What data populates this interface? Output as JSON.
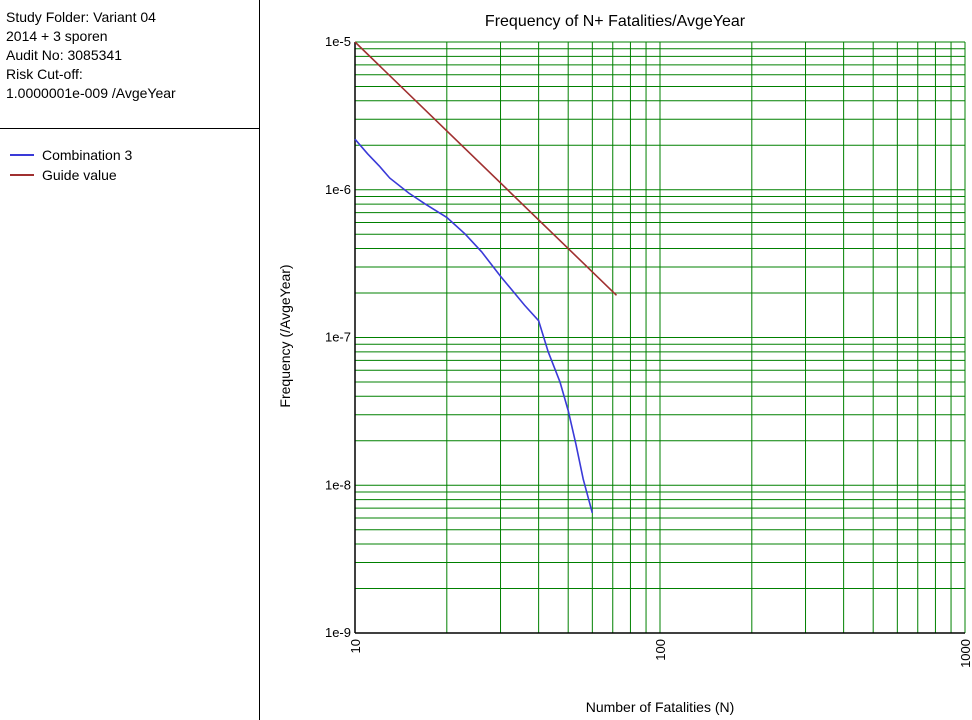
{
  "info": {
    "lines": [
      "Study Folder: Variant 04",
      "2014 + 3 sporen",
      "Audit No: 3085341",
      "Risk Cut-off:",
      "1.0000001e-009 /AvgeYear"
    ]
  },
  "chart_data": {
    "type": "line",
    "title": "Frequency of N+ Fatalities/AvgeYear",
    "xlabel": "Number of Fatalities (N)",
    "ylabel": "Frequency (/AvgeYear)",
    "xscale": "log",
    "yscale": "log",
    "xlim": [
      10,
      1000
    ],
    "ylim": [
      1e-09,
      1e-05
    ],
    "grid": true,
    "grid_color": "#008000",
    "x_tick_labels": [
      "10",
      "100",
      "1000"
    ],
    "y_tick_labels": [
      "1e-9",
      "1e-8",
      "1e-7",
      "1e-6",
      "1e-5"
    ],
    "legend_position": "left-panel",
    "series": [
      {
        "name": "Combination 3",
        "color": "#3a3ad8",
        "x": [
          10,
          11,
          12,
          13,
          15,
          17,
          20,
          23,
          26,
          30,
          33,
          36,
          40,
          43,
          47,
          50,
          53,
          56,
          60
        ],
        "y": [
          2.2e-06,
          1.75e-06,
          1.45e-06,
          1.2e-06,
          9.5e-07,
          8e-07,
          6.5e-07,
          5e-07,
          3.8e-07,
          2.6e-07,
          2.05e-07,
          1.65e-07,
          1.3e-07,
          8e-08,
          5e-08,
          3.2e-08,
          1.9e-08,
          1.1e-08,
          6.5e-09
        ]
      },
      {
        "name": "Guide value",
        "color": "#a03030",
        "x": [
          10,
          72
        ],
        "y": [
          1e-05,
          1.93e-07
        ]
      }
    ]
  }
}
